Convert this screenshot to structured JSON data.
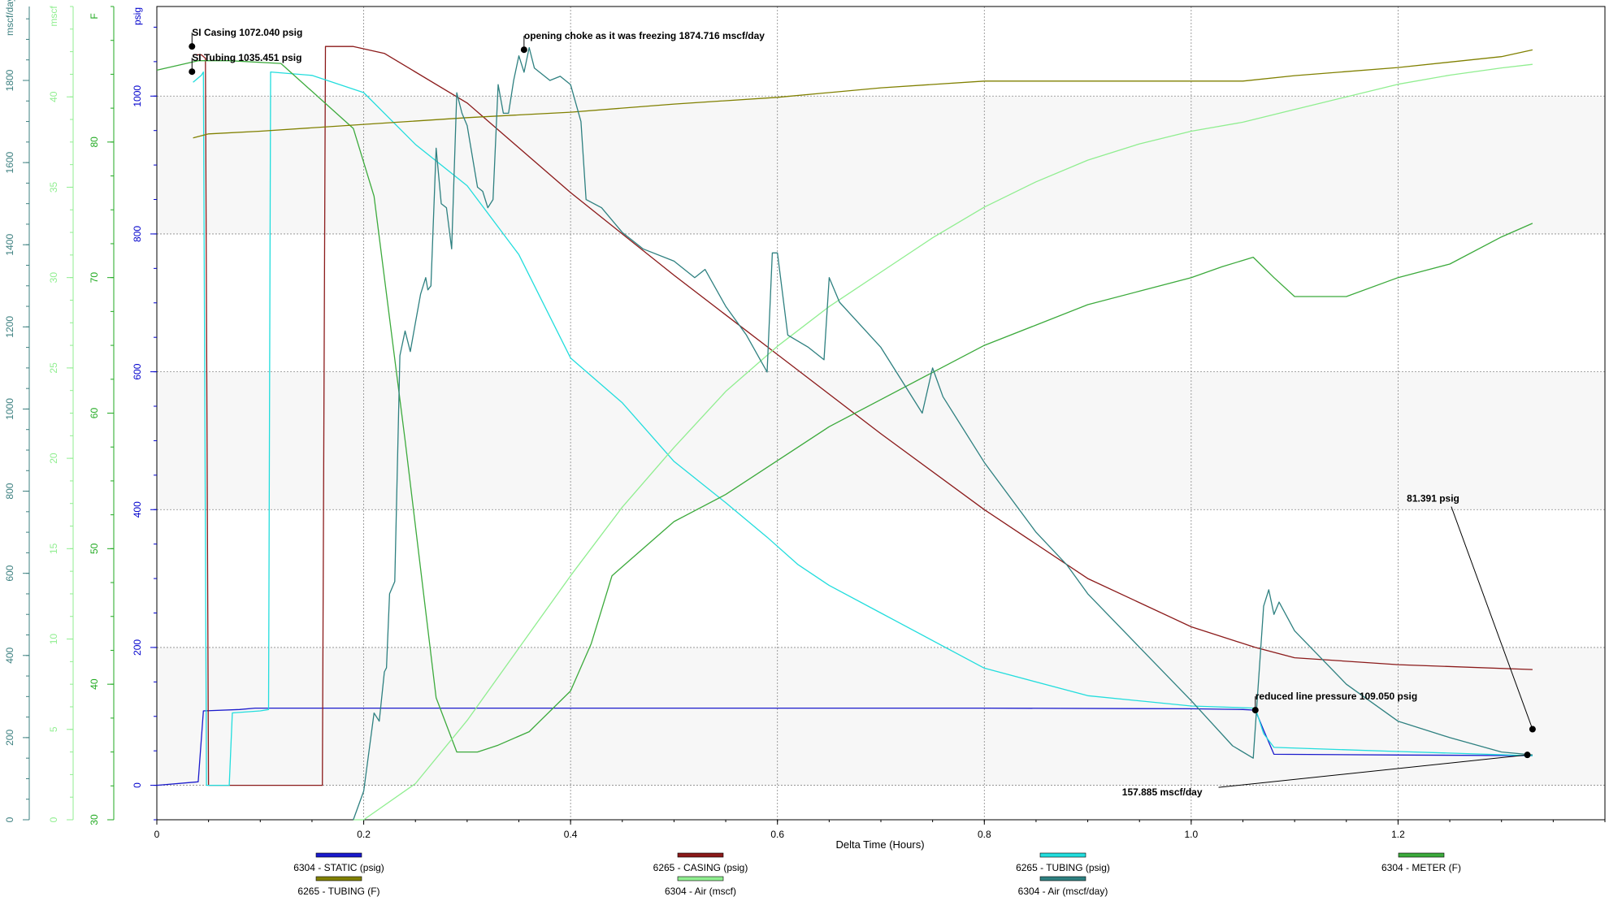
{
  "chart_data": {
    "type": "line",
    "xlabel": "Delta Time (Hours)",
    "xlim": [
      0,
      1.4
    ],
    "x_ticks": [
      "0",
      "0.2",
      "0.4",
      "0.6",
      "0.8",
      "1.0",
      "1.2"
    ],
    "grid": true,
    "legend_position": "bottom",
    "axes": [
      {
        "id": "flow",
        "label": "mscf/day",
        "color": "#3d8080",
        "ylim": [
          0,
          1980
        ],
        "ticks": [
          {
            "v": 0,
            "t": "0"
          },
          {
            "v": 200,
            "t": "200"
          },
          {
            "v": 400,
            "t": "400"
          },
          {
            "v": 600,
            "t": "600"
          },
          {
            "v": 800,
            "t": "800"
          },
          {
            "v": 1000,
            "t": "1000"
          },
          {
            "v": 1200,
            "t": "1200"
          },
          {
            "v": 1400,
            "t": "1400"
          },
          {
            "v": 1600,
            "t": "1600"
          },
          {
            "v": 1800,
            "t": "1800"
          }
        ]
      },
      {
        "id": "air",
        "label": "mscf",
        "color": "#90ee90",
        "ylim": [
          0,
          45
        ],
        "ticks": [
          {
            "v": 0,
            "t": "0"
          },
          {
            "v": 5,
            "t": "5"
          },
          {
            "v": 10,
            "t": "10"
          },
          {
            "v": 15,
            "t": "15"
          },
          {
            "v": 20,
            "t": "20"
          },
          {
            "v": 25,
            "t": "25"
          },
          {
            "v": 30,
            "t": "30"
          },
          {
            "v": 35,
            "t": "35"
          },
          {
            "v": 40,
            "t": "40"
          }
        ]
      },
      {
        "id": "temp",
        "label": "F",
        "color": "#22aa22",
        "ylim": [
          30,
          90
        ],
        "ticks": [
          {
            "v": 30,
            "t": "30"
          },
          {
            "v": 40,
            "t": "40"
          },
          {
            "v": 50,
            "t": "50"
          },
          {
            "v": 60,
            "t": "60"
          },
          {
            "v": 70,
            "t": "70"
          },
          {
            "v": 80,
            "t": "80"
          }
        ]
      },
      {
        "id": "psig",
        "label": "psig",
        "color": "#0000cc",
        "ylim": [
          -50,
          1130
        ],
        "ticks": [
          {
            "v": 0,
            "t": "0"
          },
          {
            "v": 200,
            "t": "200"
          },
          {
            "v": 400,
            "t": "400"
          },
          {
            "v": 600,
            "t": "600"
          },
          {
            "v": 800,
            "t": "800"
          },
          {
            "v": 1000,
            "t": "1000"
          }
        ]
      }
    ],
    "series": [
      {
        "name": "6304 - STATIC (psig)",
        "axis": "psig",
        "color": "#1a1acc",
        "points": [
          [
            0,
            0
          ],
          [
            0.04,
            5
          ],
          [
            0.045,
            108
          ],
          [
            0.08,
            110
          ],
          [
            0.095,
            112
          ],
          [
            0.2,
            112
          ],
          [
            0.5,
            112
          ],
          [
            0.8,
            112
          ],
          [
            1.0,
            111
          ],
          [
            1.05,
            110
          ],
          [
            1.062,
            109
          ],
          [
            1.07,
            80
          ],
          [
            1.08,
            45
          ],
          [
            1.2,
            44
          ],
          [
            1.33,
            43
          ]
        ]
      },
      {
        "name": "6265 - CASING (psig)",
        "axis": "psig",
        "color": "#8b1a1a",
        "points": [
          [
            0.035,
            1060
          ],
          [
            0.043,
            1060
          ],
          [
            0.047,
            1055
          ],
          [
            0.05,
            0
          ],
          [
            0.07,
            0
          ],
          [
            0.1,
            0
          ],
          [
            0.13,
            0
          ],
          [
            0.16,
            0
          ],
          [
            0.163,
            1072
          ],
          [
            0.19,
            1072
          ],
          [
            0.22,
            1062
          ],
          [
            0.3,
            990
          ],
          [
            0.4,
            860
          ],
          [
            0.5,
            740
          ],
          [
            0.6,
            625
          ],
          [
            0.7,
            510
          ],
          [
            0.8,
            400
          ],
          [
            0.9,
            300
          ],
          [
            1.0,
            230
          ],
          [
            1.062,
            200
          ],
          [
            1.1,
            185
          ],
          [
            1.2,
            175
          ],
          [
            1.33,
            168
          ]
        ]
      },
      {
        "name": "6265 - TUBING (psig)",
        "axis": "psig",
        "color": "#22dddd",
        "points": [
          [
            0.035,
            1020
          ],
          [
            0.043,
            1030
          ],
          [
            0.045,
            1035
          ],
          [
            0.048,
            0
          ],
          [
            0.07,
            0
          ],
          [
            0.073,
            105
          ],
          [
            0.1,
            108
          ],
          [
            0.108,
            110
          ],
          [
            0.11,
            1035
          ],
          [
            0.15,
            1030
          ],
          [
            0.2,
            1005
          ],
          [
            0.25,
            930
          ],
          [
            0.3,
            870
          ],
          [
            0.35,
            770
          ],
          [
            0.4,
            620
          ],
          [
            0.45,
            555
          ],
          [
            0.5,
            470
          ],
          [
            0.55,
            410
          ],
          [
            0.59,
            360
          ],
          [
            0.62,
            320
          ],
          [
            0.65,
            290
          ],
          [
            0.7,
            250
          ],
          [
            0.8,
            170
          ],
          [
            0.9,
            130
          ],
          [
            1.0,
            115
          ],
          [
            1.062,
            112
          ],
          [
            1.07,
            75
          ],
          [
            1.08,
            55
          ],
          [
            1.2,
            49
          ],
          [
            1.33,
            43
          ]
        ]
      },
      {
        "name": "6304 - METER (F)",
        "axis": "temp",
        "color": "#3caa3c",
        "points": [
          [
            0,
            85.3
          ],
          [
            0.04,
            86
          ],
          [
            0.07,
            86
          ],
          [
            0.12,
            85.8
          ],
          [
            0.19,
            81
          ],
          [
            0.21,
            76
          ],
          [
            0.24,
            58
          ],
          [
            0.27,
            39
          ],
          [
            0.29,
            35
          ],
          [
            0.31,
            35
          ],
          [
            0.33,
            35.5
          ],
          [
            0.36,
            36.5
          ],
          [
            0.4,
            39.5
          ],
          [
            0.42,
            43
          ],
          [
            0.44,
            48
          ],
          [
            0.5,
            52
          ],
          [
            0.55,
            54
          ],
          [
            0.6,
            56.5
          ],
          [
            0.65,
            59
          ],
          [
            0.7,
            61
          ],
          [
            0.75,
            63
          ],
          [
            0.8,
            65
          ],
          [
            0.85,
            66.5
          ],
          [
            0.9,
            68
          ],
          [
            0.95,
            69
          ],
          [
            1.0,
            70
          ],
          [
            1.03,
            70.8
          ],
          [
            1.06,
            71.5
          ],
          [
            1.08,
            70
          ],
          [
            1.1,
            68.6
          ],
          [
            1.15,
            68.6
          ],
          [
            1.2,
            70
          ],
          [
            1.25,
            71
          ],
          [
            1.3,
            73
          ],
          [
            1.33,
            74
          ]
        ]
      },
      {
        "name": "6265 - TUBING (F)",
        "axis": "temp",
        "color": "#808000",
        "points": [
          [
            0.035,
            80.3
          ],
          [
            0.05,
            80.6
          ],
          [
            0.1,
            80.8
          ],
          [
            0.2,
            81.3
          ],
          [
            0.3,
            81.8
          ],
          [
            0.4,
            82.2
          ],
          [
            0.5,
            82.8
          ],
          [
            0.6,
            83.3
          ],
          [
            0.7,
            84
          ],
          [
            0.8,
            84.5
          ],
          [
            0.9,
            84.5
          ],
          [
            1.0,
            84.5
          ],
          [
            1.05,
            84.5
          ],
          [
            1.1,
            84.9
          ],
          [
            1.2,
            85.5
          ],
          [
            1.3,
            86.3
          ],
          [
            1.33,
            86.8
          ]
        ]
      },
      {
        "name": "6304 - Air (mscf)",
        "axis": "air",
        "color": "#90ee90",
        "points": [
          [
            0.19,
            0
          ],
          [
            0.2,
            0
          ],
          [
            0.25,
            2
          ],
          [
            0.3,
            5.5
          ],
          [
            0.35,
            9.5
          ],
          [
            0.4,
            13.5
          ],
          [
            0.45,
            17.3
          ],
          [
            0.5,
            20.6
          ],
          [
            0.55,
            23.7
          ],
          [
            0.6,
            26.2
          ],
          [
            0.65,
            28.4
          ],
          [
            0.7,
            30.3
          ],
          [
            0.75,
            32.2
          ],
          [
            0.8,
            33.9
          ],
          [
            0.85,
            35.3
          ],
          [
            0.9,
            36.5
          ],
          [
            0.95,
            37.4
          ],
          [
            1.0,
            38.1
          ],
          [
            1.05,
            38.6
          ],
          [
            1.1,
            39.3
          ],
          [
            1.15,
            40
          ],
          [
            1.2,
            40.7
          ],
          [
            1.25,
            41.2
          ],
          [
            1.3,
            41.6
          ],
          [
            1.33,
            41.8
          ]
        ]
      },
      {
        "name": "6304 - Air (mscf/day)",
        "axis": "flow",
        "color": "#2e8080",
        "points": [
          [
            0.19,
            0
          ],
          [
            0.2,
            70
          ],
          [
            0.21,
            260
          ],
          [
            0.215,
            240
          ],
          [
            0.22,
            360
          ],
          [
            0.222,
            370
          ],
          [
            0.225,
            550
          ],
          [
            0.23,
            580
          ],
          [
            0.235,
            1130
          ],
          [
            0.24,
            1190
          ],
          [
            0.245,
            1140
          ],
          [
            0.25,
            1210
          ],
          [
            0.255,
            1280
          ],
          [
            0.26,
            1320
          ],
          [
            0.262,
            1290
          ],
          [
            0.265,
            1300
          ],
          [
            0.27,
            1635
          ],
          [
            0.275,
            1500
          ],
          [
            0.28,
            1490
          ],
          [
            0.285,
            1390
          ],
          [
            0.29,
            1770
          ],
          [
            0.295,
            1720
          ],
          [
            0.3,
            1690
          ],
          [
            0.31,
            1540
          ],
          [
            0.315,
            1530
          ],
          [
            0.32,
            1490
          ],
          [
            0.325,
            1510
          ],
          [
            0.33,
            1790
          ],
          [
            0.335,
            1720
          ],
          [
            0.34,
            1720
          ],
          [
            0.345,
            1800
          ],
          [
            0.35,
            1860
          ],
          [
            0.355,
            1820
          ],
          [
            0.36,
            1880
          ],
          [
            0.365,
            1830
          ],
          [
            0.37,
            1820
          ],
          [
            0.38,
            1800
          ],
          [
            0.39,
            1810
          ],
          [
            0.4,
            1790
          ],
          [
            0.41,
            1700
          ],
          [
            0.415,
            1510
          ],
          [
            0.43,
            1490
          ],
          [
            0.45,
            1430
          ],
          [
            0.47,
            1390
          ],
          [
            0.5,
            1360
          ],
          [
            0.52,
            1320
          ],
          [
            0.53,
            1340
          ],
          [
            0.55,
            1250
          ],
          [
            0.57,
            1180
          ],
          [
            0.59,
            1090
          ],
          [
            0.595,
            1380
          ],
          [
            0.6,
            1380
          ],
          [
            0.61,
            1180
          ],
          [
            0.63,
            1150
          ],
          [
            0.645,
            1120
          ],
          [
            0.65,
            1320
          ],
          [
            0.66,
            1260
          ],
          [
            0.7,
            1150
          ],
          [
            0.74,
            990
          ],
          [
            0.75,
            1100
          ],
          [
            0.76,
            1030
          ],
          [
            0.8,
            870
          ],
          [
            0.85,
            700
          ],
          [
            0.88,
            620
          ],
          [
            0.9,
            550
          ],
          [
            0.95,
            420
          ],
          [
            1.0,
            290
          ],
          [
            1.04,
            180
          ],
          [
            1.06,
            150
          ],
          [
            1.07,
            520
          ],
          [
            1.075,
            560
          ],
          [
            1.08,
            500
          ],
          [
            1.085,
            530
          ],
          [
            1.1,
            460
          ],
          [
            1.15,
            330
          ],
          [
            1.2,
            240
          ],
          [
            1.25,
            200
          ],
          [
            1.3,
            165
          ],
          [
            1.33,
            158
          ]
        ]
      }
    ],
    "annotations": [
      {
        "text": "SI Casing 1072.040 psig",
        "axis": "psig",
        "x": 0.034,
        "y": 1072.04
      },
      {
        "text": "SI Tubing 1035.451 psig",
        "axis": "psig",
        "x": 0.034,
        "y": 1035.451
      },
      {
        "text": "opening choke as it was freezing 1874.716 mscf/day",
        "axis": "flow",
        "x": 0.355,
        "y": 1874.716
      },
      {
        "text": "reduced line pressure 109.050 psig",
        "axis": "psig",
        "x": 1.062,
        "y": 109.05
      },
      {
        "text": "81.391 psig",
        "axis": "psig",
        "x": 1.33,
        "y": 81.391
      },
      {
        "text": "157.885 mscf/day",
        "axis": "flow",
        "x": 1.325,
        "y": 157.885
      }
    ]
  }
}
